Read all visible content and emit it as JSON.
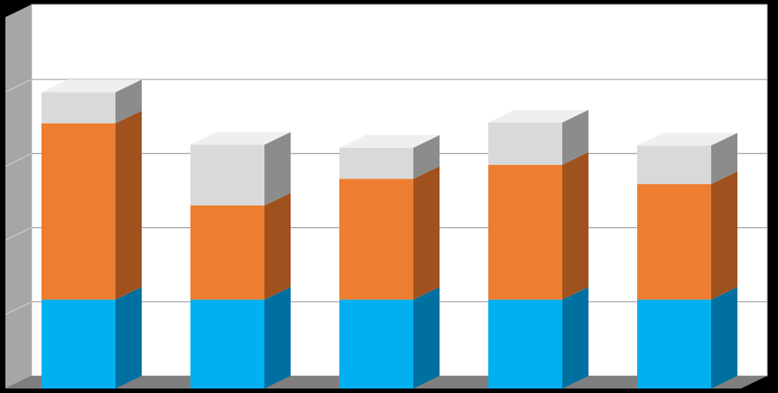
{
  "chart_data": {
    "type": "bar",
    "stacked": true,
    "three_d": true,
    "categories": [
      "",
      "",
      "",
      "",
      ""
    ],
    "series": [
      {
        "values": [
          1.2,
          1.2,
          1.2,
          1.2,
          1.2
        ],
        "color": "#00B0F0",
        "side_color": "#0070A0"
      },
      {
        "values": [
          2.38,
          1.27,
          1.63,
          1.82,
          1.56
        ],
        "color": "#ED7D31",
        "side_color": "#A0521E"
      },
      {
        "values": [
          0.42,
          0.82,
          0.42,
          0.57,
          0.52
        ],
        "color": "#D9D9D9",
        "side_color": "#8C8C8C"
      }
    ],
    "ylim": [
      0,
      5
    ],
    "gridlines": [
      1,
      2,
      3,
      4
    ],
    "grid": true,
    "legend": false,
    "title": "",
    "xlabel": "",
    "ylabel": ""
  },
  "style": {
    "background": "#000000",
    "plot_background": "#FFFFFF",
    "wall_color": "#A6A6A6",
    "floor_color": "#7F7F7F",
    "gridline_color": "#A6A6A6"
  }
}
